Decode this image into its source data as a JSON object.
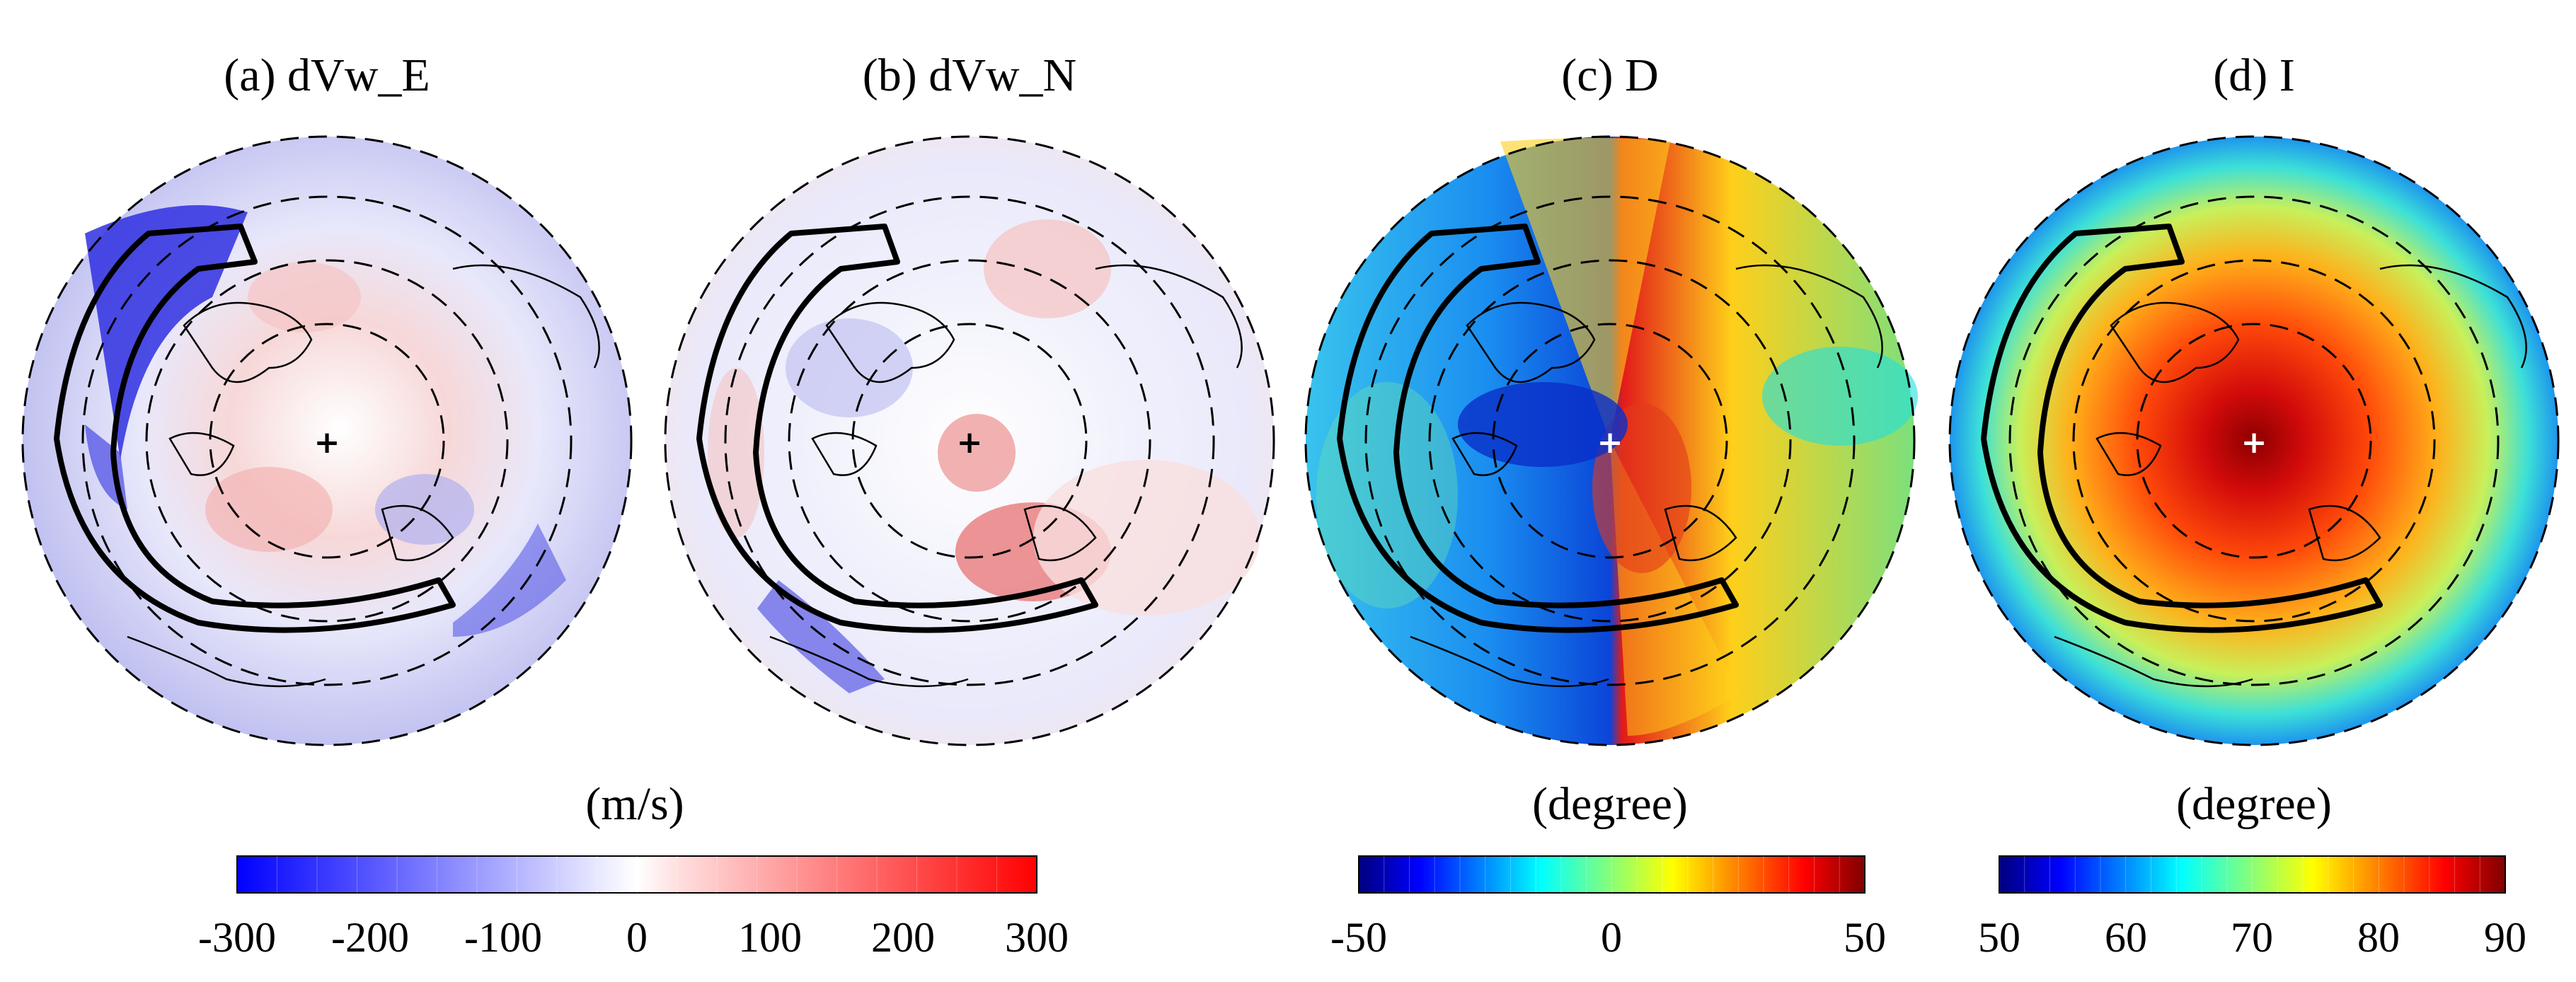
{
  "panels": [
    {
      "title": "(a) dVw_E",
      "field": "diverging-blue-red"
    },
    {
      "title": "(b) dVw_N",
      "field": "diverging-blue-red"
    },
    {
      "title": "(c) D",
      "field": "jet"
    },
    {
      "title": "(d) I",
      "field": "jet"
    }
  ],
  "colorbars": [
    {
      "unit": "(m/s)",
      "ticks": [
        "-300",
        "-200",
        "-100",
        "0",
        "100",
        "200",
        "300"
      ],
      "min": -300,
      "max": 300,
      "steps": 20,
      "palette": "blue-white-red"
    },
    {
      "unit": "(degree)",
      "ticks": [
        "-50",
        "0",
        "50"
      ],
      "min": -50,
      "max": 50,
      "steps": 20,
      "palette": "jet"
    },
    {
      "unit": "(degree)",
      "ticks": [
        "50",
        "60",
        "70",
        "80",
        "90"
      ],
      "min": 50,
      "max": 90,
      "steps": 20,
      "palette": "jet"
    }
  ],
  "colors": {
    "blue": "#3b3bdc",
    "red": "#e02020",
    "dark_red": "#8b0000",
    "dark_blue": "#00008b"
  },
  "icons": [
    "plus-marker-icon"
  ]
}
